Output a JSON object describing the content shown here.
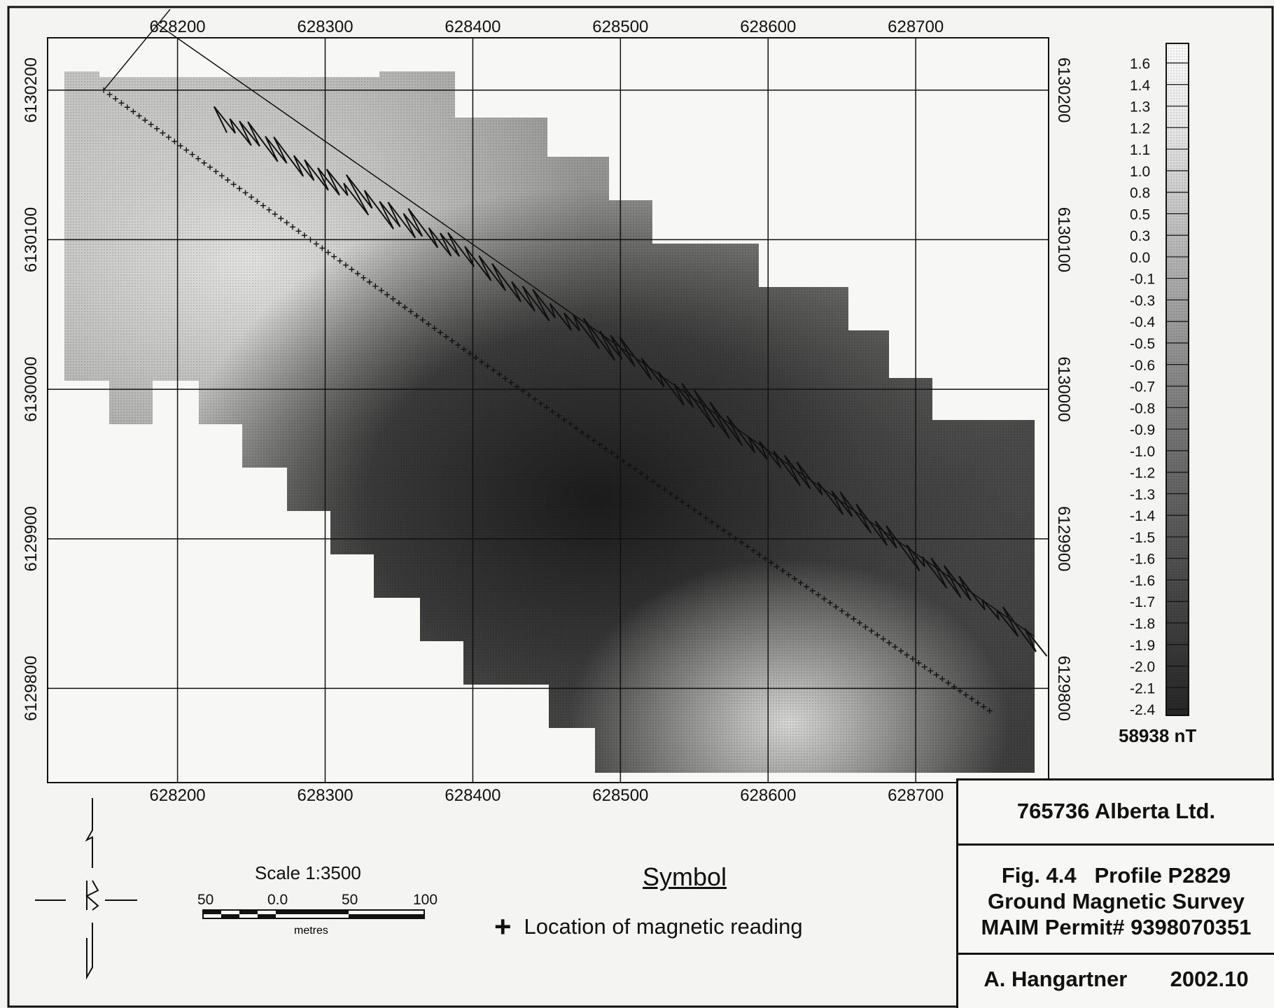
{
  "axes": {
    "x_ticks": [
      628200,
      628300,
      628400,
      628500,
      628600,
      628700
    ],
    "y_ticks": [
      6130200,
      6130100,
      6130000,
      6129900,
      6129800
    ],
    "x_labels": [
      "628200",
      "628300",
      "628400",
      "628500",
      "628600",
      "628700"
    ],
    "y_labels": [
      "6130200",
      "6130100",
      "6130000",
      "6129900",
      "6129800"
    ],
    "x_range": [
      628112,
      628790
    ],
    "y_range": [
      6129737,
      6130235
    ]
  },
  "legend": {
    "values": [
      "1.6",
      "1.4",
      "1.3",
      "1.2",
      "1.1",
      "1.0",
      "0.8",
      "0.5",
      "0.3",
      "0.0",
      "-0.1",
      "-0.3",
      "-0.4",
      "-0.5",
      "-0.6",
      "-0.7",
      "-0.8",
      "-0.9",
      "-1.0",
      "-1.2",
      "-1.3",
      "-1.4",
      "-1.5",
      "-1.6",
      "-1.6",
      "-1.7",
      "-1.8",
      "-1.9",
      "-2.0",
      "-2.1",
      "-2.4"
    ],
    "units": "58938 nT"
  },
  "survey_line": {
    "start": [
      628150,
      6130200
    ],
    "end": [
      628750,
      6129785
    ],
    "profile_baseline_end": [
      628780,
      6129835
    ]
  },
  "scale": {
    "title": "Scale 1:3500",
    "labels": [
      "50",
      "0.0",
      "50",
      "100"
    ],
    "unit": "metres"
  },
  "symbol": {
    "heading": "Symbol",
    "mark": "+",
    "text": "Location of magnetic reading"
  },
  "title_block": {
    "company": "765736 Alberta Ltd.",
    "figure": "Fig. 4.4   Profile P2829",
    "survey": "Ground Magnetic Survey",
    "permit": "MAIM Permit# 9398070351",
    "author": "A. Hangartner",
    "date": "2002.10"
  },
  "icons": {
    "north_arrow": "north-arrow-icon"
  }
}
